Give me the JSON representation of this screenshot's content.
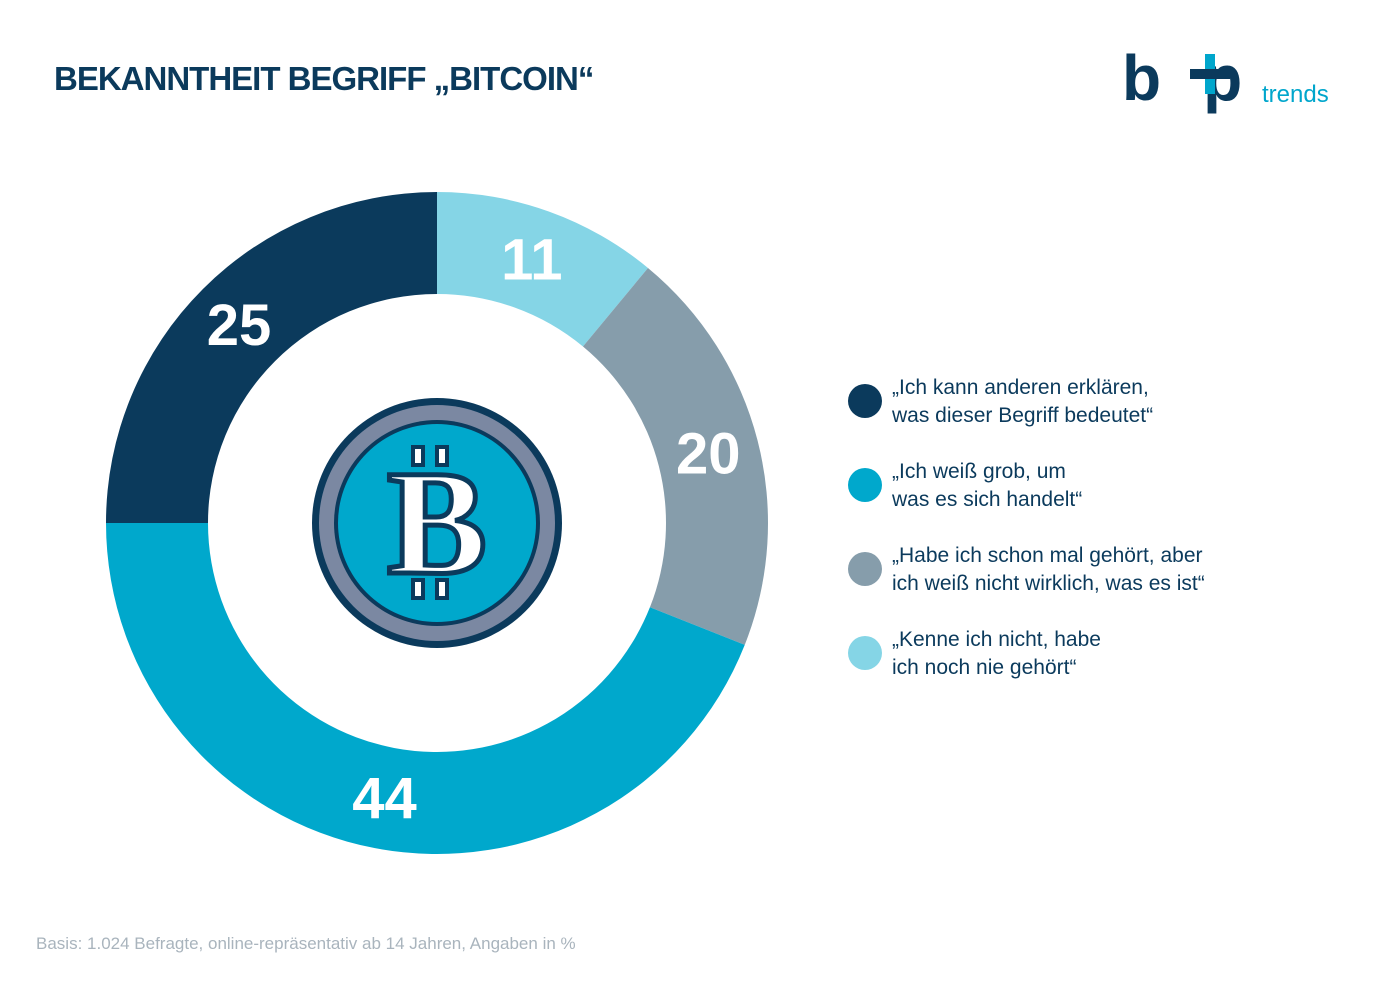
{
  "header": {
    "title": "BEKANNTHEIT BEGRIFF „BITCOIN“"
  },
  "logo": {
    "main": "b p",
    "sub": "trends"
  },
  "chart_data": {
    "type": "pie",
    "title": "BEKANNTHEIT BEGRIFF „BITCOIN“",
    "center_icon": "bitcoin-icon",
    "categories": [
      "„Kenne ich nicht, habe ich noch nie gehört“",
      "„Habe ich schon mal gehört, aber ich weiß nicht wirklich, was es ist“",
      "„Ich weiß grob, um was es sich handelt“",
      "„Ich kann anderen erklären, was dieser Begriff bedeutet“"
    ],
    "values": [
      11,
      20,
      44,
      25
    ],
    "labels": [
      "11",
      "20",
      "44",
      "25"
    ],
    "colors": [
      "#85d5e6",
      "#869dab",
      "#00a8cc",
      "#0b3a5c"
    ],
    "legend_position": "right"
  },
  "legend": {
    "items": [
      {
        "lines": [
          "„Ich kann anderen erklären,",
          "was dieser Begriff bedeutet“"
        ],
        "color": "#0b3a5c"
      },
      {
        "lines": [
          "„Ich weiß grob, um",
          "was es sich handelt“"
        ],
        "color": "#00a8cc"
      },
      {
        "lines": [
          "„Habe ich schon mal gehört, aber",
          "ich weiß nicht wirklich, was es ist“"
        ],
        "color": "#869dab"
      },
      {
        "lines": [
          "„Kenne ich nicht, habe",
          "ich noch nie gehört“"
        ],
        "color": "#85d5e6"
      }
    ]
  },
  "footnote": "Basis: 1.024 Befragte, online-repräsentativ ab 14 Jahren, Angaben in %"
}
